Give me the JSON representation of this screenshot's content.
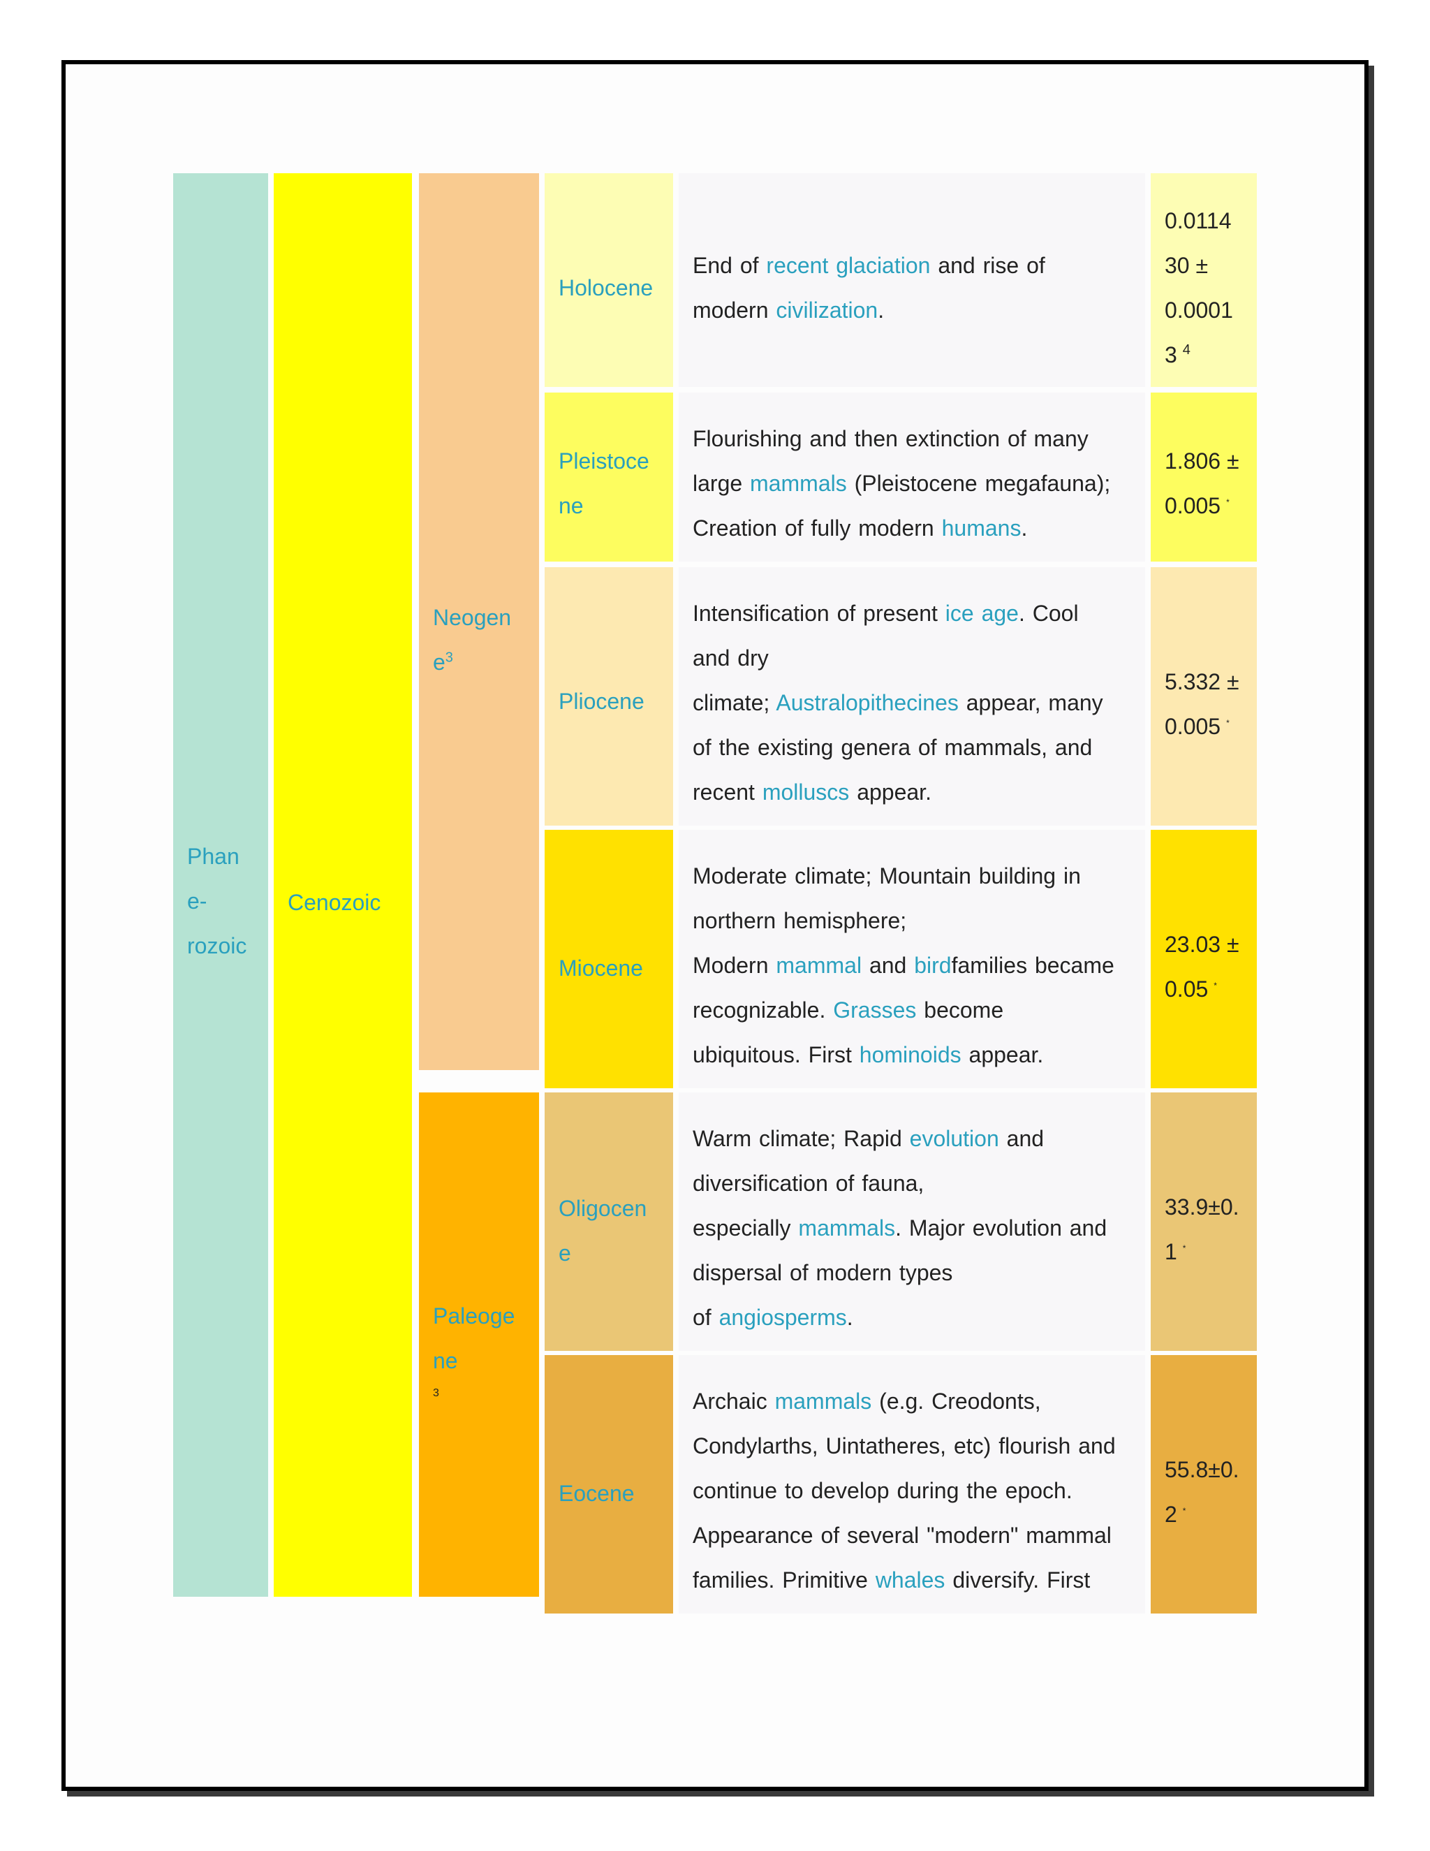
{
  "eon": {
    "label_lines": [
      "Phan",
      "e-",
      "rozoic"
    ],
    "color": "#b5e3d3"
  },
  "era": {
    "label": "Cenozoic",
    "color": "#ffff00"
  },
  "periods": [
    {
      "label_lines": [
        "Neogen",
        "e"
      ],
      "footnote": "3",
      "color": "#f9cb90"
    },
    {
      "label_lines": [
        "Paleoge",
        "ne"
      ],
      "footnote": "3",
      "color": "#ffb300"
    }
  ],
  "epochs": [
    {
      "name_lines": [
        "Holocene"
      ],
      "color": "#fdfdb4",
      "desc_lines": [
        [
          {
            "t": "End of "
          },
          {
            "t": "recent glaciation",
            "link": true
          },
          {
            "t": " and rise of"
          }
        ],
        [
          {
            "t": "modern "
          },
          {
            "t": "civilization",
            "link": true
          },
          {
            "t": "."
          }
        ]
      ],
      "age_lines": [
        "0.0114",
        "30 ±",
        "0.0001",
        "3"
      ],
      "age_note": "4"
    },
    {
      "name_lines": [
        "Pleistoce",
        "ne"
      ],
      "color": "#fdfd5f",
      "desc_lines": [
        [
          {
            "t": "Flourishing and then extinction of many"
          }
        ],
        [
          {
            "t": "large "
          },
          {
            "t": "mammals",
            "link": true
          },
          {
            "t": " (Pleistocene megafauna);"
          }
        ],
        [
          {
            "t": "Creation of fully modern "
          },
          {
            "t": "humans",
            "link": true
          },
          {
            "t": "."
          }
        ]
      ],
      "age_lines": [
        "1.806 ±",
        "0.005"
      ],
      "age_note": "*"
    },
    {
      "name_lines": [
        "Pliocene"
      ],
      "color": "#fde9b1",
      "desc_lines": [
        [
          {
            "t": "Intensification of present "
          },
          {
            "t": "ice age",
            "link": true
          },
          {
            "t": ". Cool"
          }
        ],
        [
          {
            "t": "and dry"
          }
        ],
        [
          {
            "t": "climate; "
          },
          {
            "t": "Australopithecines",
            "link": true
          },
          {
            "t": " appear, many"
          }
        ],
        [
          {
            "t": "of the existing genera of mammals, and"
          }
        ],
        [
          {
            "t": "recent "
          },
          {
            "t": "molluscs",
            "link": true
          },
          {
            "t": " appear."
          }
        ]
      ],
      "age_lines": [
        "5.332 ±",
        "0.005"
      ],
      "age_note": "*"
    },
    {
      "name_lines": [
        "Miocene"
      ],
      "color": "#ffe100",
      "desc_lines": [
        [
          {
            "t": "Moderate climate; Mountain building in"
          }
        ],
        [
          {
            "t": "northern hemisphere;"
          }
        ],
        [
          {
            "t": "Modern "
          },
          {
            "t": "mammal",
            "link": true
          },
          {
            "t": " and "
          },
          {
            "t": "bird",
            "link": true
          },
          {
            "t": "families became"
          }
        ],
        [
          {
            "t": "recognizable. "
          },
          {
            "t": "Grasses",
            "link": true
          },
          {
            "t": " become"
          }
        ],
        [
          {
            "t": "ubiquitous. First "
          },
          {
            "t": "hominoids",
            "link": true
          },
          {
            "t": " appear."
          }
        ]
      ],
      "age_lines": [
        "23.03 ±",
        "0.05"
      ],
      "age_note": "*"
    },
    {
      "name_lines": [
        "Oligocen",
        "e"
      ],
      "color": "#eac675",
      "desc_lines": [
        [
          {
            "t": "Warm climate; Rapid "
          },
          {
            "t": "evolution",
            "link": true
          },
          {
            "t": " and"
          }
        ],
        [
          {
            "t": "diversification of fauna,"
          }
        ],
        [
          {
            "t": "especially "
          },
          {
            "t": "mammals",
            "link": true
          },
          {
            "t": ". Major evolution and"
          }
        ],
        [
          {
            "t": "dispersal of modern types"
          }
        ],
        [
          {
            "t": "of "
          },
          {
            "t": "angiosperms",
            "link": true
          },
          {
            "t": "."
          }
        ]
      ],
      "age_lines": [
        "33.9±0.",
        "1"
      ],
      "age_note": "*"
    },
    {
      "name_lines": [
        "Eocene"
      ],
      "color": "#e8ae41",
      "desc_lines": [
        [
          {
            "t": "Archaic "
          },
          {
            "t": "mammals",
            "link": true
          },
          {
            "t": " (e.g. Creodonts,"
          }
        ],
        [
          {
            "t": "Condylarths, Uintatheres, etc) flourish and"
          }
        ],
        [
          {
            "t": "continue to develop during the epoch."
          }
        ],
        [
          {
            "t": "Appearance of several \"modern\" mammal"
          }
        ],
        [
          {
            "t": "families. Primitive "
          },
          {
            "t": "whales",
            "link": true
          },
          {
            "t": " diversify. First"
          }
        ]
      ],
      "age_lines": [
        "55.8±0.",
        "2"
      ],
      "age_note": "*"
    }
  ]
}
